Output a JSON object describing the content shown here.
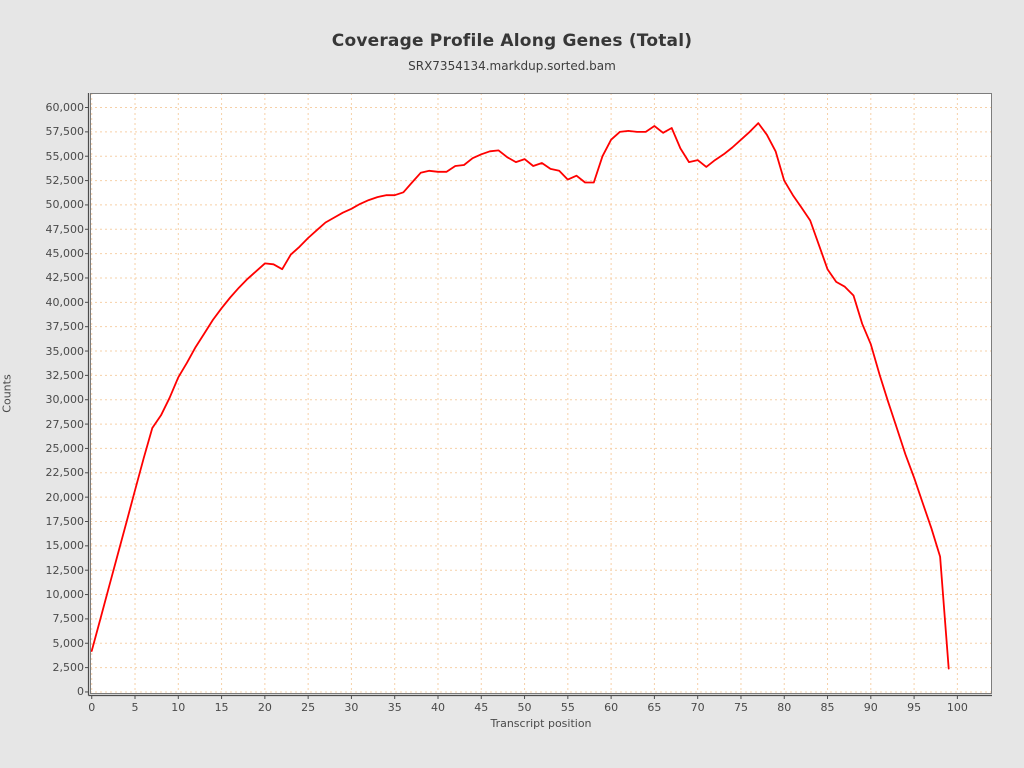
{
  "page": {
    "outer_background": "#e6e6e6",
    "plot_background": "#ffffff"
  },
  "chart_data": {
    "type": "line",
    "title": "Coverage Profile Along Genes (Total)",
    "subtitle": "SRX7354134.markdup.sorted.bam",
    "xlabel": "Transcript position",
    "ylabel": "Counts",
    "grid": true,
    "legend": "none",
    "line_color": "#ff0000",
    "grid_color": "#f6d0a8",
    "axis_color": "#4d4d4d",
    "border_color": "#7d7d7d",
    "xlim": [
      -0.2,
      104
    ],
    "ylim": [
      -210,
      61490
    ],
    "x_ticks": [
      0,
      5,
      10,
      15,
      20,
      25,
      30,
      35,
      40,
      45,
      50,
      55,
      60,
      65,
      70,
      75,
      80,
      85,
      90,
      95,
      100
    ],
    "y_ticks": [
      0,
      2500,
      5000,
      7500,
      10000,
      12500,
      15000,
      17500,
      20000,
      22500,
      25000,
      27500,
      30000,
      32500,
      35000,
      37500,
      40000,
      42500,
      45000,
      47500,
      50000,
      52500,
      55000,
      57500,
      60000
    ],
    "series": [
      {
        "name": "SRX7354134.markdup.sorted.bam",
        "x": [
          0,
          1,
          2,
          3,
          4,
          5,
          6,
          7,
          8,
          9,
          10,
          11,
          12,
          13,
          14,
          15,
          16,
          17,
          18,
          19,
          20,
          21,
          22,
          23,
          24,
          25,
          26,
          27,
          28,
          29,
          30,
          31,
          32,
          33,
          34,
          35,
          36,
          37,
          38,
          39,
          40,
          41,
          42,
          43,
          44,
          45,
          46,
          47,
          48,
          49,
          50,
          51,
          52,
          53,
          54,
          55,
          56,
          57,
          58,
          59,
          60,
          61,
          62,
          63,
          64,
          65,
          66,
          67,
          68,
          69,
          70,
          71,
          72,
          73,
          74,
          75,
          76,
          77,
          78,
          79,
          80,
          81,
          82,
          83,
          84,
          85,
          86,
          87,
          88,
          89,
          90,
          91,
          92,
          93,
          94,
          95,
          96,
          97,
          98,
          99
        ],
        "y": [
          4200,
          7500,
          10800,
          14100,
          17400,
          20700,
          24000,
          27100,
          28400,
          30200,
          32300,
          33800,
          35400,
          36800,
          38200,
          39400,
          40500,
          41500,
          42400,
          43200,
          44000,
          43900,
          43400,
          44900,
          45700,
          46600,
          47400,
          48200,
          48700,
          49200,
          49600,
          50100,
          50500,
          50800,
          51000,
          51000,
          51300,
          52300,
          53300,
          53500,
          53400,
          53400,
          54000,
          54100,
          54800,
          55200,
          55500,
          55600,
          54900,
          54400,
          54700,
          54000,
          54300,
          53700,
          53500,
          52600,
          53000,
          52300,
          52300,
          55000,
          56700,
          57500,
          57600,
          57500,
          57500,
          58100,
          57400,
          57900,
          55800,
          54400,
          54600,
          53900,
          54600,
          55200,
          55900,
          56700,
          57500,
          58400,
          57200,
          55500,
          52500,
          51000,
          49700,
          48400,
          45900,
          43400,
          42100,
          41600,
          40700,
          37800,
          35700,
          32600,
          29800,
          27100,
          24400,
          22000,
          19400,
          16800,
          13900,
          2400
        ]
      }
    ]
  }
}
